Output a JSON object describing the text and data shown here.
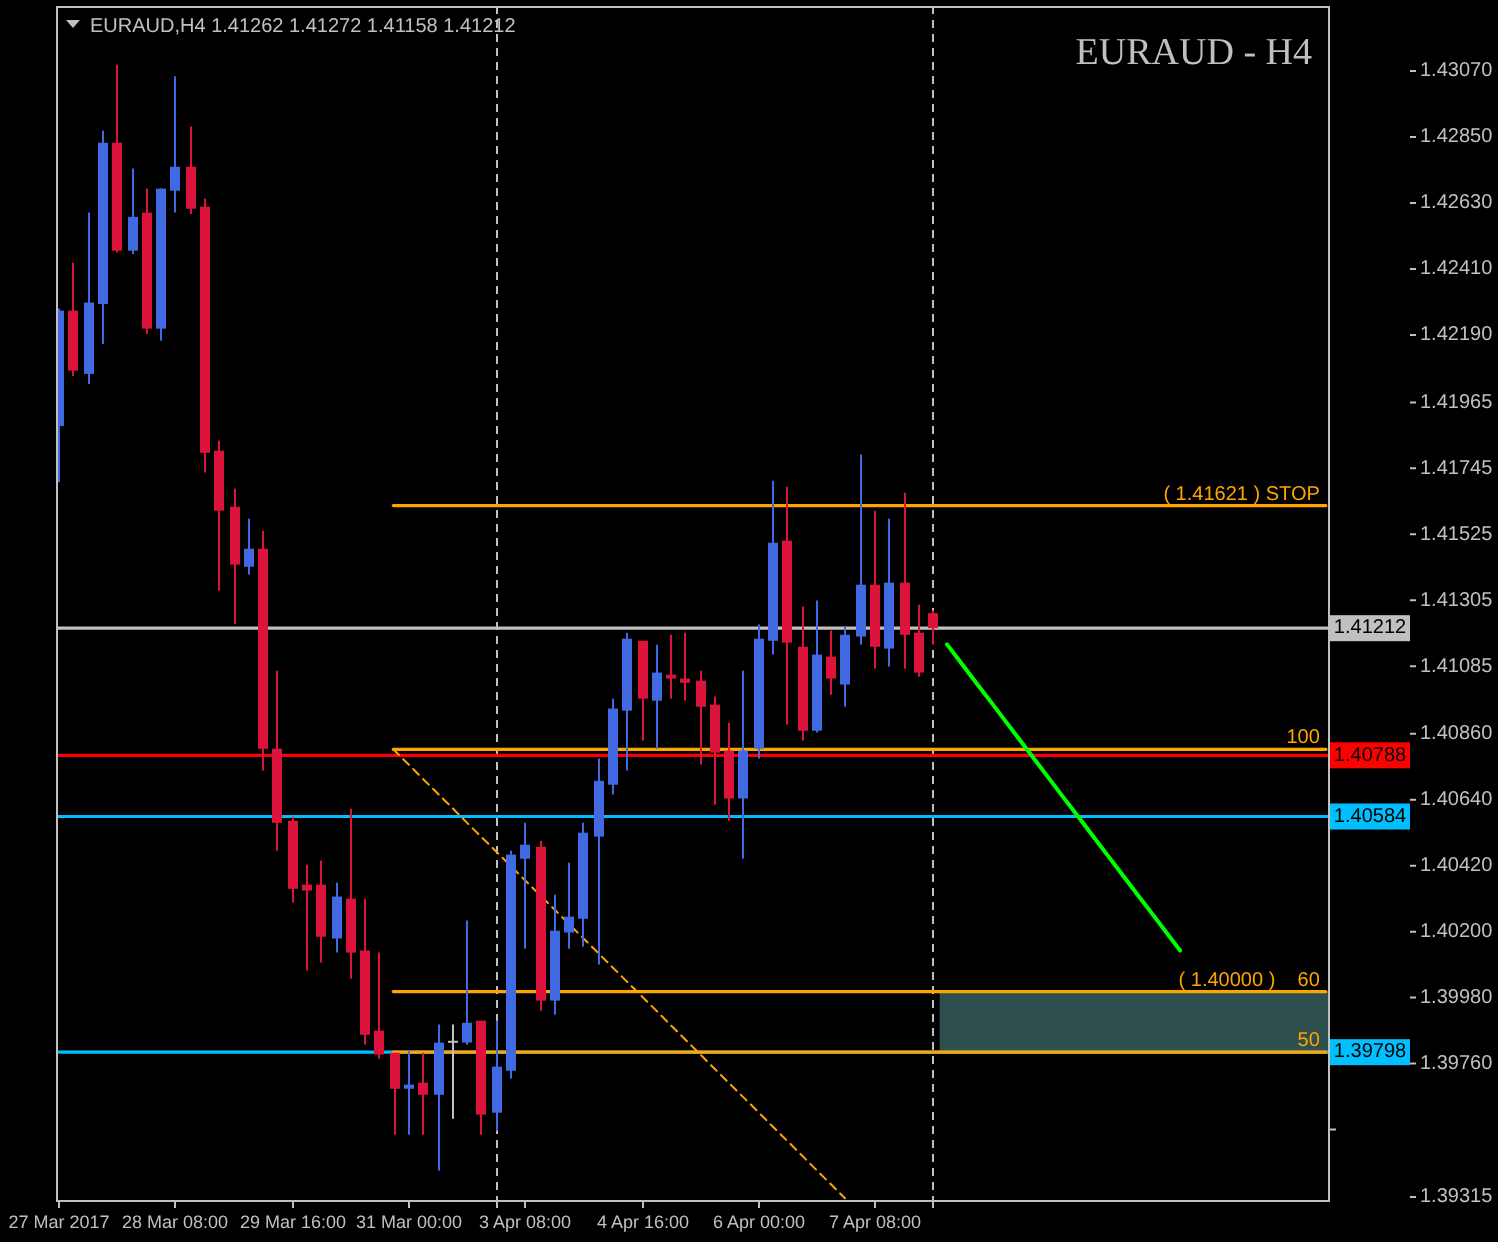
{
  "chart_data": {
    "type": "candlestick",
    "title": "EURAUD - H4",
    "subtitle": "EURAUD,H4 1.41262 1.41272 1.41158 1.41212",
    "categories": [
      "27 Mar 2017",
      null,
      null,
      null,
      null,
      null,
      null,
      null,
      "28 Mar 08:00",
      null,
      null,
      null,
      null,
      null,
      null,
      null,
      "29 Mar 16:00",
      null,
      null,
      null,
      null,
      null,
      null,
      null,
      "31 Mar 00:00",
      null,
      null,
      null,
      null,
      null,
      null,
      null,
      "3 Apr 08:00",
      null,
      null,
      null,
      null,
      null,
      null,
      null,
      "4 Apr 16:00",
      null,
      null,
      null,
      null,
      null,
      null,
      null,
      "6 Apr 00:00",
      null,
      null,
      null,
      null,
      null,
      null,
      null,
      "7 Apr 08:00",
      null,
      null,
      null,
      null,
      null,
      null,
      null,
      null,
      null,
      null,
      null,
      null,
      null,
      null,
      null,
      null,
      null,
      null,
      null,
      null,
      null,
      null,
      null,
      null,
      null,
      null,
      null,
      null,
      null,
      null,
      null
    ],
    "ohlc": [
      [
        1.41886,
        1.42278,
        1.41699,
        1.42271
      ],
      [
        1.42271,
        1.42431,
        1.42053,
        1.42071
      ],
      [
        1.4206,
        1.42598,
        1.42026,
        1.42298
      ],
      [
        1.42293,
        1.42871,
        1.4216,
        1.42831
      ],
      [
        1.42831,
        1.43091,
        1.42465,
        1.42471
      ],
      [
        1.42471,
        1.42745,
        1.4246,
        1.42584
      ],
      [
        1.42598,
        1.42678,
        1.42193,
        1.42211
      ],
      [
        1.42211,
        1.42678,
        1.42171,
        1.42678
      ],
      [
        1.42671,
        1.43053,
        1.42598,
        1.42751
      ],
      [
        1.42751,
        1.42885,
        1.42593,
        1.42611
      ],
      [
        1.42618,
        1.42645,
        1.41731,
        1.41797
      ],
      [
        1.41804,
        1.41837,
        1.41337,
        1.41604
      ],
      [
        1.41617,
        1.41677,
        1.41226,
        1.41424
      ],
      [
        1.41417,
        1.41577,
        1.41391,
        1.41477
      ],
      [
        1.41477,
        1.41537,
        1.40737,
        1.4081
      ],
      [
        1.4081,
        1.4107,
        1.4047,
        1.40563
      ],
      [
        1.4057,
        1.40583,
        1.40297,
        1.40343
      ],
      [
        1.40357,
        1.40423,
        1.4007,
        1.40337
      ],
      [
        1.40357,
        1.40437,
        1.40097,
        1.40183
      ],
      [
        1.40177,
        1.40363,
        1.4013,
        1.40317
      ],
      [
        1.4031,
        1.4061,
        1.40043,
        1.4013
      ],
      [
        1.40137,
        1.4031,
        1.39823,
        1.39856
      ],
      [
        1.3987,
        1.4013,
        1.39776,
        1.3979
      ],
      [
        1.39796,
        1.39796,
        1.39523,
        1.39676
      ],
      [
        1.39676,
        1.39803,
        1.39523,
        1.3969
      ],
      [
        1.39696,
        1.39796,
        1.39523,
        1.39656
      ],
      [
        1.39656,
        1.3989,
        1.39403,
        1.3983
      ],
      [
        1.39836,
        1.3989,
        1.39576,
        1.39836
      ],
      [
        1.3983,
        1.40237,
        1.39823,
        1.39896
      ],
      [
        1.39903,
        1.39903,
        1.39523,
        1.3959
      ],
      [
        1.39596,
        1.39903,
        1.39536,
        1.3975
      ],
      [
        1.39736,
        1.4047,
        1.3971,
        1.40457
      ],
      [
        1.40443,
        1.40563,
        1.40143,
        1.4049
      ],
      [
        1.40483,
        1.40503,
        1.39936,
        1.3997
      ],
      [
        1.3997,
        1.40323,
        1.39923,
        1.40203
      ],
      [
        1.40197,
        1.4043,
        1.40143,
        1.4025
      ],
      [
        1.40243,
        1.40563,
        1.4015,
        1.4053
      ],
      [
        1.40517,
        1.40777,
        1.4009,
        1.40703
      ],
      [
        1.4069,
        1.40977,
        1.40657,
        1.40944
      ],
      [
        1.40937,
        1.41197,
        1.40737,
        1.41177
      ],
      [
        1.4117,
        1.4117,
        1.40837,
        1.40977
      ],
      [
        1.4097,
        1.41157,
        1.4081,
        1.41064
      ],
      [
        1.41057,
        1.4119,
        1.40977,
        1.41044
      ],
      [
        1.41044,
        1.41197,
        1.4097,
        1.4103
      ],
      [
        1.41037,
        1.4107,
        1.40757,
        1.4095
      ],
      [
        1.40957,
        1.40984,
        1.40623,
        1.40797
      ],
      [
        1.40804,
        1.40897,
        1.4057,
        1.40644
      ],
      [
        1.40644,
        1.4107,
        1.40443,
        1.40804
      ],
      [
        1.4081,
        1.41224,
        1.40777,
        1.41177
      ],
      [
        1.4117,
        1.41704,
        1.41124,
        1.41497
      ],
      [
        1.41504,
        1.41684,
        1.4089,
        1.41164
      ],
      [
        1.4115,
        1.41284,
        1.40837,
        1.4087
      ],
      [
        1.4087,
        1.41304,
        1.40864,
        1.41124
      ],
      [
        1.41117,
        1.41204,
        1.4099,
        1.41044
      ],
      [
        1.41024,
        1.41217,
        1.4095,
        1.4119
      ],
      [
        1.41184,
        1.41791,
        1.41157,
        1.41357
      ],
      [
        1.41357,
        1.41604,
        1.41077,
        1.4115
      ],
      [
        1.41144,
        1.41577,
        1.41084,
        1.41364
      ],
      [
        1.41364,
        1.41664,
        1.41077,
        1.4119
      ],
      [
        1.41197,
        1.4129,
        1.4105,
        1.41064
      ],
      [
        1.41262,
        1.41272,
        1.41158,
        1.41212
      ],
      null,
      null,
      null,
      null,
      null,
      null,
      null,
      null,
      null,
      null,
      null,
      null,
      null,
      null,
      null,
      null,
      null,
      null,
      null,
      null,
      null,
      null,
      null,
      null,
      null,
      null,
      null
    ],
    "colors": [
      "#4169e1",
      "#dc143c",
      "#4169e1",
      "#4169e1",
      "#dc143c",
      "#4169e1",
      "#dc143c",
      "#4169e1",
      "#4169e1",
      "#dc143c",
      "#dc143c",
      "#dc143c",
      "#dc143c",
      "#4169e1",
      "#dc143c",
      "#dc143c",
      "#dc143c",
      "#dc143c",
      "#dc143c",
      "#4169e1",
      "#dc143c",
      "#dc143c",
      "#dc143c",
      "#dc143c",
      "#4169e1",
      "#dc143c",
      "#4169e1",
      "#c0c0c0",
      "#4169e1",
      "#dc143c",
      "#4169e1",
      "#4169e1",
      "#4169e1",
      "#dc143c",
      "#4169e1",
      "#4169e1",
      "#4169e1",
      "#4169e1",
      "#4169e1",
      "#4169e1",
      "#dc143c",
      "#4169e1",
      "#dc143c",
      "#dc143c",
      "#dc143c",
      "#dc143c",
      "#dc143c",
      "#4169e1",
      "#4169e1",
      "#4169e1",
      "#dc143c",
      "#dc143c",
      "#4169e1",
      "#dc143c",
      "#4169e1",
      "#4169e1",
      "#dc143c",
      "#4169e1",
      "#dc143c",
      "#dc143c",
      "#dc143c",
      null,
      null,
      null,
      null,
      null,
      null,
      null,
      null,
      null,
      null,
      null,
      null,
      null,
      null,
      null,
      null,
      null,
      null,
      null,
      null,
      null,
      null,
      null,
      null,
      null,
      null,
      null
    ],
    "ylim": [
      1.39305,
      1.43287
    ],
    "yticks": [
      {
        "value": 1.4307,
        "label": "1.43070"
      },
      {
        "value": 1.4285,
        "label": "1.42850"
      },
      {
        "value": 1.4263,
        "label": "1.42630"
      },
      {
        "value": 1.4241,
        "label": "1.42410"
      },
      {
        "value": 1.4219,
        "label": "1.42190"
      },
      1.41965,
      1.41745,
      1.41525,
      1.41305,
      1.41085,
      {
        "value": 1.4086,
        "label": "1.40860"
      },
      {
        "value": 1.4064,
        "label": "1.40640"
      },
      {
        "value": 1.4042,
        "label": "1.40420"
      },
      {
        "value": 1.402,
        "label": "1.40200"
      },
      {
        "value": 1.3998,
        "label": "1.39980"
      },
      {
        "value": 1.3976,
        "label": "1.39760"
      },
      {
        "value": 1.3954,
        "label": null
      },
      1.39315
    ],
    "ref_lines": [
      {
        "axis": "y",
        "value": 1.41212,
        "label": "1.41212",
        "color": "#c0c0c0"
      },
      {
        "axis": "y",
        "value": 1.40788,
        "label": "1.40788",
        "color": "#ff0000"
      },
      {
        "axis": "y",
        "value": 1.40584,
        "label": "1.40584",
        "color": "#00bfff"
      },
      {
        "axis": "y",
        "value": 1.39798,
        "label": "1.39798",
        "color": "#00bfff"
      }
    ],
    "bands": [
      {
        "axis": "y",
        "from": 1.39798,
        "to": 1.4,
        "color": "#2f4f4f"
      }
    ],
    "series": [
      {
        "type": "line",
        "name": "( 1.41621 ) STOP",
        "color": "#ffa500",
        "values": [
          null,
          null,
          null,
          null,
          null,
          null,
          null,
          null,
          null,
          null,
          null,
          null,
          null,
          null,
          null,
          null,
          null,
          null,
          null,
          null,
          null,
          null,
          null,
          1.41621,
          1.41621,
          1.41621,
          1.41621,
          1.41621,
          1.41621,
          1.41621,
          1.41621,
          1.41621,
          1.41621,
          1.41621,
          1.41621,
          1.41621,
          1.41621,
          1.41621,
          1.41621,
          1.41621,
          1.41621,
          1.41621,
          1.41621,
          1.41621,
          1.41621,
          1.41621,
          1.41621,
          1.41621,
          1.41621,
          1.41621,
          1.41621,
          1.41621,
          1.41621,
          1.41621,
          1.41621,
          1.41621,
          1.41621,
          1.41621,
          1.41621,
          1.41621,
          1.41621,
          1.41621,
          1.41621,
          1.41621,
          1.41621,
          1.41621,
          1.41621,
          1.41621,
          1.41621,
          1.41621,
          1.41621,
          1.41621,
          1.41621,
          1.41621,
          1.41621,
          1.41621,
          1.41621,
          1.41621,
          1.41621,
          1.41621,
          1.41621,
          1.41621,
          1.41621,
          1.41621,
          1.41621,
          1.41621,
          1.41621,
          1.41621
        ]
      },
      {
        "type": "line",
        "name": "100",
        "color": "#ffa500",
        "values": [
          null,
          null,
          null,
          null,
          null,
          null,
          null,
          null,
          null,
          null,
          null,
          null,
          null,
          null,
          null,
          null,
          null,
          null,
          null,
          null,
          null,
          null,
          null,
          1.40808,
          1.40808,
          1.40808,
          1.40808,
          1.40808,
          1.40808,
          1.40808,
          1.40808,
          1.40808,
          1.40808,
          1.40808,
          1.40808,
          1.40808,
          1.40808,
          1.40808,
          1.40808,
          1.40808,
          1.40808,
          1.40808,
          1.40808,
          1.40808,
          1.40808,
          1.40808,
          1.40808,
          1.40808,
          1.40808,
          1.40808,
          1.40808,
          1.40808,
          1.40808,
          1.40808,
          1.40808,
          1.40808,
          1.40808,
          1.40808,
          1.40808,
          1.40808,
          1.40808,
          1.40808,
          1.40808,
          1.40808,
          1.40808,
          1.40808,
          1.40808,
          1.40808,
          1.40808,
          1.40808,
          1.40808,
          1.40808,
          1.40808,
          1.40808,
          1.40808,
          1.40808,
          1.40808,
          1.40808,
          1.40808,
          1.40808,
          1.40808,
          1.40808,
          1.40808,
          1.40808,
          1.40808,
          1.40808,
          1.40808,
          1.40808
        ]
      },
      {
        "type": "line",
        "name": "( 1.40000 )    60",
        "color": "#ffa500",
        "values": [
          null,
          null,
          null,
          null,
          null,
          null,
          null,
          null,
          null,
          null,
          null,
          null,
          null,
          null,
          null,
          null,
          null,
          null,
          null,
          null,
          null,
          null,
          null,
          1.4,
          1.4,
          1.4,
          1.4,
          1.4,
          1.4,
          1.4,
          1.4,
          1.4,
          1.4,
          1.4,
          1.4,
          1.4,
          1.4,
          1.4,
          1.4,
          1.4,
          1.4,
          1.4,
          1.4,
          1.4,
          1.4,
          1.4,
          1.4,
          1.4,
          1.4,
          1.4,
          1.4,
          1.4,
          1.4,
          1.4,
          1.4,
          1.4,
          1.4,
          1.4,
          1.4,
          1.4,
          1.4,
          1.4,
          1.4,
          1.4,
          1.4,
          1.4,
          1.4,
          1.4,
          1.4,
          1.4,
          1.4,
          1.4,
          1.4,
          1.4,
          1.4,
          1.4,
          1.4,
          1.4,
          1.4,
          1.4,
          1.4,
          1.4,
          1.4,
          1.4,
          1.4,
          1.4,
          1.4,
          1.4
        ]
      },
      {
        "type": "line",
        "name": "50",
        "color": "#ffa500",
        "values": [
          null,
          null,
          null,
          null,
          null,
          null,
          null,
          null,
          null,
          null,
          null,
          null,
          null,
          null,
          null,
          null,
          null,
          null,
          null,
          null,
          null,
          null,
          null,
          1.39798,
          1.39798,
          1.39798,
          1.39798,
          1.39798,
          1.39798,
          1.39798,
          1.39798,
          1.39798,
          1.39798,
          1.39798,
          1.39798,
          1.39798,
          1.39798,
          1.39798,
          1.39798,
          1.39798,
          1.39798,
          1.39798,
          1.39798,
          1.39798,
          1.39798,
          1.39798,
          1.39798,
          1.39798,
          1.39798,
          1.39798,
          1.39798,
          1.39798,
          1.39798,
          1.39798,
          1.39798,
          1.39798,
          1.39798,
          1.39798,
          1.39798,
          1.39798,
          1.39798,
          1.39798,
          1.39798,
          1.39798,
          1.39798,
          1.39798,
          1.39798,
          1.39798,
          1.39798,
          1.39798,
          1.39798,
          1.39798,
          1.39798,
          1.39798,
          1.39798,
          1.39798,
          1.39798,
          1.39798,
          1.39798,
          1.39798,
          1.39798,
          1.39798,
          1.39798,
          1.39798,
          1.39798,
          1.39798,
          1.39798,
          1.39798
        ]
      },
      {
        "type": "line",
        "color": "#ffa500",
        "line_style": "dashed",
        "values": [
          null,
          null,
          null,
          null,
          null,
          null,
          null,
          null,
          null,
          null,
          null,
          null,
          null,
          null,
          null,
          null,
          null,
          null,
          null,
          null,
          null,
          null,
          null,
          1.40808,
          1.4076,
          1.40711,
          1.40663,
          1.40615,
          1.40566,
          1.40518,
          1.4047,
          1.40422,
          1.40373,
          1.40325,
          1.40277,
          1.40228,
          1.4018,
          1.40132,
          1.40083,
          1.40035,
          1.39987,
          1.39939,
          1.3989,
          1.39842,
          1.39794,
          1.39745,
          1.39697,
          1.39649,
          1.39601,
          1.39552,
          1.39504,
          1.39456,
          1.39407,
          1.39359,
          1.39311,
          null,
          null,
          null,
          null,
          null,
          null,
          null,
          null,
          null,
          null,
          null,
          null,
          null,
          null,
          null,
          null,
          null,
          null,
          null,
          null,
          null,
          null,
          null,
          null,
          null,
          null,
          null,
          null,
          null,
          null,
          null,
          null,
          null
        ]
      },
      {
        "type": "line",
        "color": "#00ff00",
        "values": [
          null,
          null,
          null,
          null,
          null,
          null,
          null,
          null,
          null,
          null,
          null,
          null,
          null,
          null,
          null,
          null,
          null,
          null,
          null,
          null,
          null,
          null,
          null,
          null,
          null,
          null,
          null,
          null,
          null,
          null,
          null,
          null,
          null,
          null,
          null,
          null,
          null,
          null,
          null,
          null,
          null,
          null,
          null,
          null,
          null,
          null,
          null,
          null,
          null,
          null,
          null,
          null,
          null,
          null,
          null,
          null,
          null,
          null,
          null,
          null,
          null,
          1.41158,
          1.41094,
          1.4103,
          1.40967,
          1.40903,
          1.40839,
          1.40775,
          1.40711,
          1.40647,
          1.40584,
          1.4052,
          1.40456,
          1.40392,
          1.40328,
          1.40265,
          1.40201,
          1.40137,
          null,
          null,
          null,
          null,
          null,
          null,
          null,
          null,
          null,
          null
        ]
      }
    ]
  }
}
